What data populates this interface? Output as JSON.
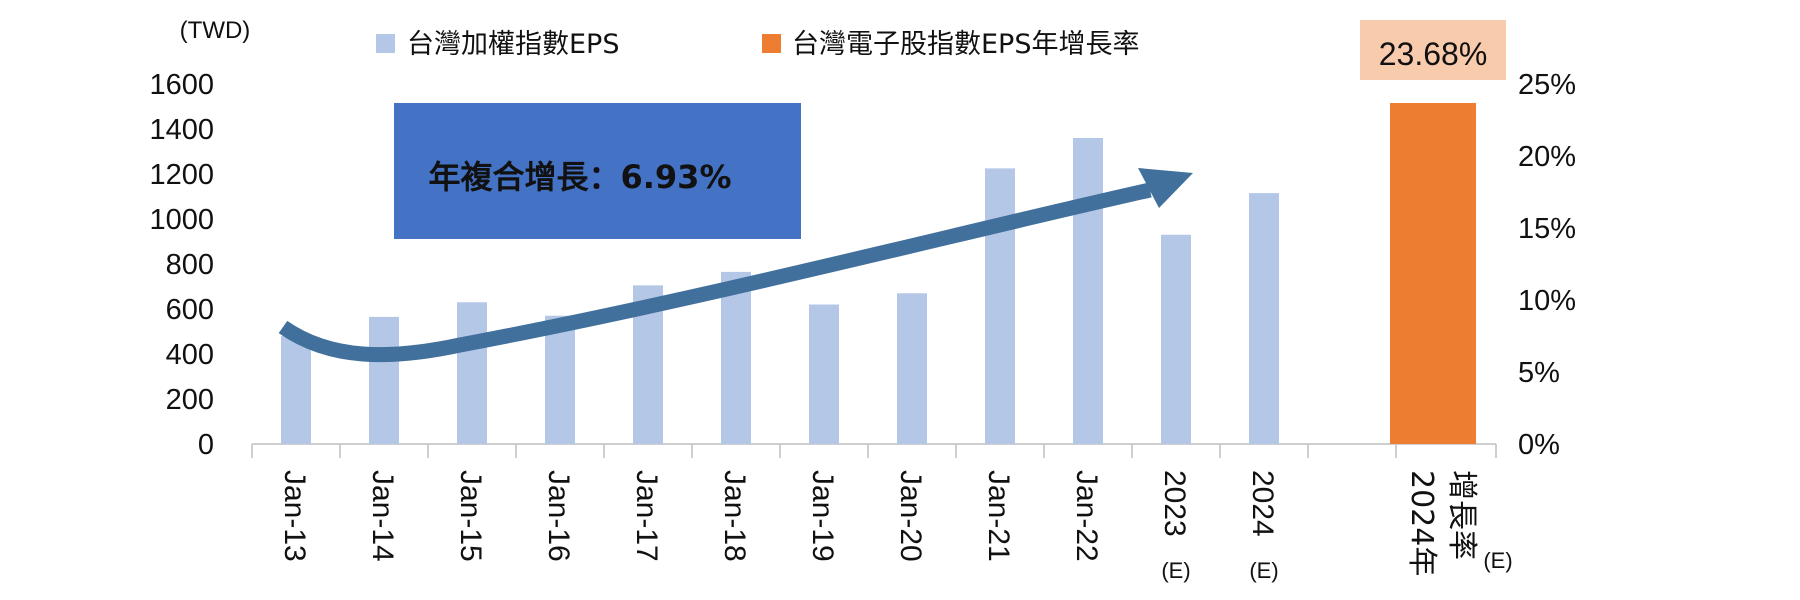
{
  "chart_data": {
    "type": "bar",
    "left_axis_unit": "(TWD)",
    "categories": [
      "Jan-13",
      "Jan-14",
      "Jan-15",
      "Jan-16",
      "Jan-17",
      "Jan-18",
      "Jan-19",
      "Jan-20",
      "Jan-21",
      "Jan-22",
      "2023",
      "2024"
    ],
    "category_suffix": [
      "",
      "",
      "",
      "",
      "",
      "",
      "",
      "",
      "",
      "",
      "(E)",
      "(E)"
    ],
    "series": [
      {
        "name": "台灣加權指數EPS",
        "color": "#b4c7e7",
        "values": [
          480,
          565,
          630,
          570,
          705,
          765,
          620,
          670,
          1225,
          1360,
          930,
          1115
        ]
      },
      {
        "name": "台灣電子股指數EPS年增長率",
        "color": "#ed7d31",
        "category": "2024年增長率",
        "category_line1": "2024年",
        "category_line2": "增長率",
        "category_suffix": "(E)",
        "value": 23.68,
        "value_label": "23.68%",
        "label_bg": "#f8cbad"
      }
    ],
    "y_left": {
      "min": 0,
      "max": 1600,
      "ticks": [
        0,
        200,
        400,
        600,
        800,
        1000,
        1200,
        1400,
        1600
      ]
    },
    "y_right": {
      "min": 0,
      "max": 25,
      "ticks": [
        "0%",
        "5%",
        "10%",
        "15%",
        "20%",
        "25%"
      ]
    },
    "annotation": {
      "text": "年複合增長：6.93%",
      "bg": "#4472c4",
      "color": "#ffffff"
    },
    "arrow_color": "#41709c",
    "grid": false,
    "legend_position": "top"
  }
}
